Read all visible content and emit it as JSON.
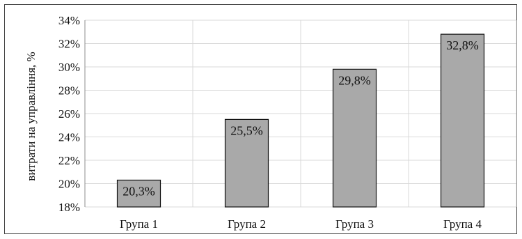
{
  "chart_data": {
    "type": "bar",
    "categories": [
      "Група 1",
      "Група 2",
      "Група 3",
      "Група 4"
    ],
    "values": [
      20.3,
      25.5,
      29.8,
      32.8
    ],
    "data_labels": [
      "20,3%",
      "25,5%",
      "29,8%",
      "32,8%"
    ],
    "title": "",
    "xlabel": "",
    "ylabel": "витрати на управління, %",
    "ylim": [
      18,
      34
    ],
    "yticks": [
      18,
      20,
      22,
      24,
      26,
      28,
      30,
      32,
      34
    ],
    "ytick_labels": [
      "18%",
      "20%",
      "22%",
      "24%",
      "26%",
      "28%",
      "30%",
      "32%",
      "34%"
    ],
    "grid": true,
    "legend": "none",
    "colors": {
      "bar_fill": "#a9a9a9",
      "bar_stroke": "#111111",
      "grid": "#d9d9d9",
      "axis": "#8c8c8c"
    }
  }
}
